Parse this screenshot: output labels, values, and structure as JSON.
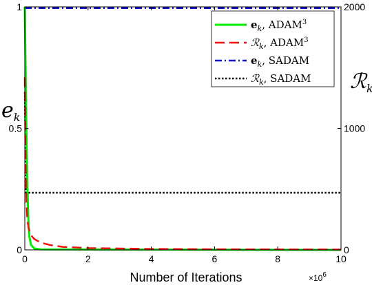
{
  "chart_data": {
    "type": "line",
    "xlabel": "Number of Iterations",
    "x_exponent": "×10",
    "x_exponent_power": "6",
    "xlim": [
      0,
      10
    ],
    "xticks": [
      "0",
      "2",
      "4",
      "6",
      "8",
      "10"
    ],
    "xtick_values": [
      0,
      2,
      4,
      6,
      8,
      10
    ],
    "ylabel_left": "e",
    "ylabel_left_sub": "k",
    "ylim_left": [
      0,
      1
    ],
    "yticks_left": [
      "0",
      "0.5",
      "1"
    ],
    "yticks_left_values": [
      0,
      0.5,
      1
    ],
    "ylabel_right": "ℛ",
    "ylabel_right_sub": "k",
    "ylim_right": [
      0,
      2000
    ],
    "yticks_right": [
      "0",
      "1000",
      "2000"
    ],
    "yticks_right_values": [
      0,
      1000,
      2000
    ],
    "grid": false,
    "legend_position": "top-right",
    "series": [
      {
        "name": "e_k, ADAM³",
        "legend_main": "e",
        "legend_sub": "k",
        "legend_rest": ", ADAM",
        "legend_sup": "3",
        "axis": "left",
        "color": "#00ee00",
        "style": "solid",
        "x": [
          0,
          0.02,
          0.04,
          0.06,
          0.08,
          0.1,
          0.12,
          0.15,
          0.2,
          0.3,
          0.5,
          10
        ],
        "y": [
          1.0,
          0.8,
          0.6,
          0.42,
          0.28,
          0.18,
          0.1,
          0.05,
          0.02,
          0.006,
          0.002,
          0.0
        ]
      },
      {
        "name": "R_k, ADAM³",
        "legend_main": "ℛ",
        "legend_sub": "k",
        "legend_rest": ", ADAM",
        "legend_sup": "3",
        "axis": "right",
        "color": "#ee1111",
        "style": "dashed",
        "x": [
          0,
          0.01,
          0.03,
          0.05,
          0.08,
          0.12,
          0.2,
          0.3,
          0.5,
          0.8,
          1.2,
          2,
          4,
          6,
          10
        ],
        "y": [
          1420,
          1200,
          700,
          400,
          250,
          180,
          120,
          90,
          60,
          40,
          25,
          15,
          8,
          5,
          3
        ]
      },
      {
        "name": "e_k, SADAM",
        "legend_main": "e",
        "legend_sub": "k",
        "legend_rest": ", SADAM",
        "legend_sup": "",
        "axis": "left",
        "color": "#1111cc",
        "style": "dashdot",
        "x": [
          0,
          10
        ],
        "y": [
          0.995,
          0.995
        ]
      },
      {
        "name": "R_k, SADAM",
        "legend_main": "ℛ",
        "legend_sub": "k",
        "legend_rest": ", SADAM",
        "legend_sup": "",
        "axis": "right",
        "color": "#000000",
        "style": "dotted",
        "x": [
          0,
          0.015,
          0.025,
          0.04,
          10
        ],
        "y": [
          1300,
          1000,
          700,
          470,
          470
        ]
      }
    ]
  }
}
